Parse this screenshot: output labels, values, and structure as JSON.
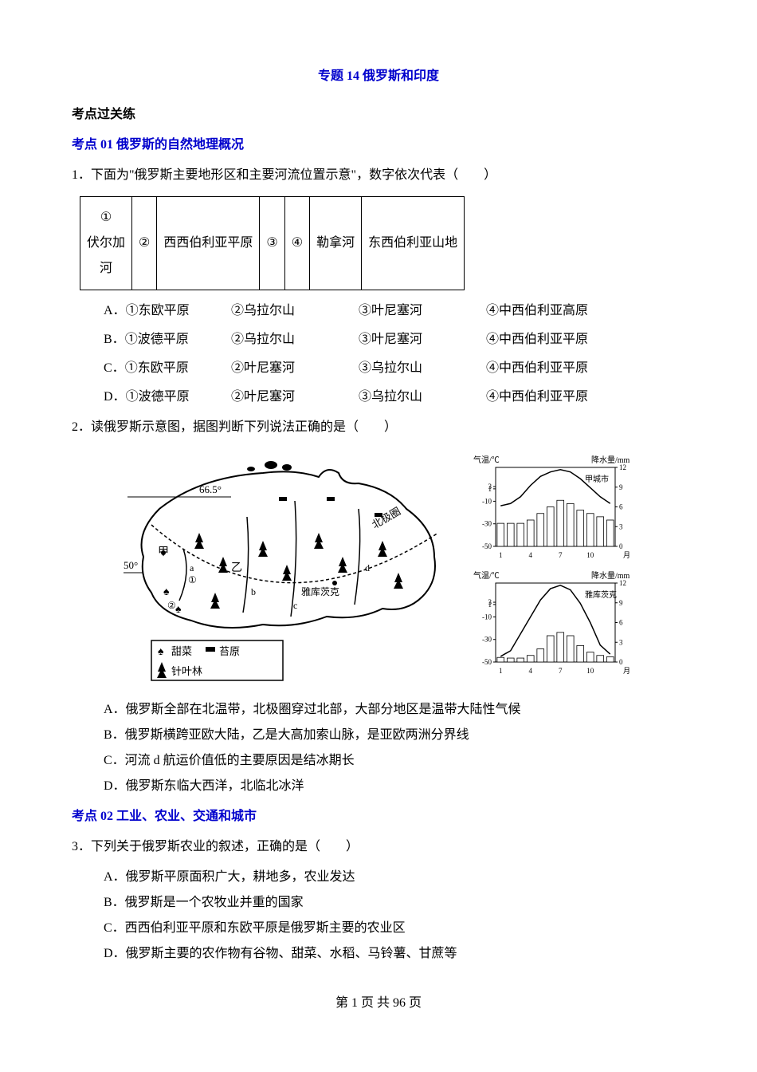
{
  "title": "专题 14 俄罗斯和印度",
  "section_header": "考点过关练",
  "subsection1": "考点 01 俄罗斯的自然地理概况",
  "q1": {
    "stem": "1．下面为\"俄罗斯主要地形区和主要河流位置示意\"，数字依次代表（　　）",
    "table": {
      "cells": [
        "①\n伏尔加\n河",
        "②",
        "西西伯利亚平原",
        "③",
        "④",
        "勒拿河",
        "东西伯利亚山地"
      ]
    },
    "options": [
      {
        "label": "A．",
        "parts": [
          "①东欧平原",
          "②乌拉尔山",
          "③叶尼塞河",
          "④中西伯利亚高原"
        ]
      },
      {
        "label": "B．",
        "parts": [
          "①波德平原",
          "②乌拉尔山",
          "③叶尼塞河",
          "④中西伯利亚平原"
        ]
      },
      {
        "label": "C．",
        "parts": [
          "①东欧平原",
          "②叶尼塞河",
          "③乌拉尔山",
          "④中西伯利亚平原"
        ]
      },
      {
        "label": "D．",
        "parts": [
          "①波德平原",
          "②叶尼塞河",
          "③乌拉尔山",
          "④中西伯利亚平原"
        ]
      }
    ]
  },
  "q2": {
    "stem": "2．读俄罗斯示意图，据图判断下列说法正确的是（　　）",
    "map": {
      "lat1": "66.5°",
      "lat2": "50°",
      "label_jia": "甲",
      "label_yi": "乙",
      "label_a": "a",
      "label_b": "b",
      "label_c": "c",
      "label_d": "d",
      "label_1": "①",
      "label_2": "②",
      "city": "雅库茨克",
      "circle": "北极圈",
      "legend1": "甜菜",
      "legend2": "苔原",
      "legend3": "针叶林"
    },
    "chart1": {
      "title_left": "气温/℃",
      "title_right": "降水量/mm",
      "city": "甲城市",
      "temp_ticks": [
        3,
        1,
        -10,
        -30,
        -50
      ],
      "precip_ticks": [
        12,
        9,
        6,
        3,
        0
      ],
      "x_labels": [
        1,
        4,
        7,
        10,
        "月"
      ],
      "temp_values": [
        -14,
        -12,
        -6,
        4,
        12,
        16,
        18,
        16,
        10,
        2,
        -6,
        -12
      ],
      "precip_values": [
        3.5,
        3.5,
        3.5,
        4,
        5,
        6,
        7,
        6.5,
        5.5,
        5,
        4.5,
        4
      ],
      "line_color": "#000000",
      "bar_color": "#ffffff",
      "bar_border": "#000000"
    },
    "chart2": {
      "title_left": "气温/℃",
      "title_right": "降水量/mm",
      "city": "雅库茨克",
      "temp_ticks": [
        3,
        1,
        -10,
        -30,
        -50
      ],
      "precip_ticks": [
        12,
        9,
        6,
        3,
        0
      ],
      "x_labels": [
        1,
        4,
        7,
        10,
        "月"
      ],
      "temp_values": [
        -45,
        -40,
        -25,
        -10,
        5,
        15,
        18,
        14,
        2,
        -15,
        -35,
        -43
      ],
      "precip_values": [
        0.7,
        0.6,
        0.6,
        1,
        2,
        4,
        4.5,
        4,
        2.5,
        1.5,
        1,
        0.8
      ],
      "line_color": "#000000",
      "bar_color": "#ffffff",
      "bar_border": "#000000"
    },
    "options": [
      "A．俄罗斯全部在北温带，北极圈穿过北部，大部分地区是温带大陆性气候",
      "B．俄罗斯横跨亚欧大陆，乙是大高加索山脉，是亚欧两洲分界线",
      "C．河流 d 航运价值低的主要原因是结冰期长",
      "D．俄罗斯东临大西洋，北临北冰洋"
    ]
  },
  "subsection2": "考点 02 工业、农业、交通和城市",
  "q3": {
    "stem": "3．下列关于俄罗斯农业的叙述，正确的是（　　）",
    "options": [
      "A．俄罗斯平原面积广大，耕地多，农业发达",
      "B．俄罗斯是一个农牧业并重的国家",
      "C．西西伯利亚平原和东欧平原是俄罗斯主要的农业区",
      "D．俄罗斯主要的农作物有谷物、甜菜、水稻、马铃薯、甘蔗等"
    ]
  },
  "footer": "第 1 页 共 96 页"
}
